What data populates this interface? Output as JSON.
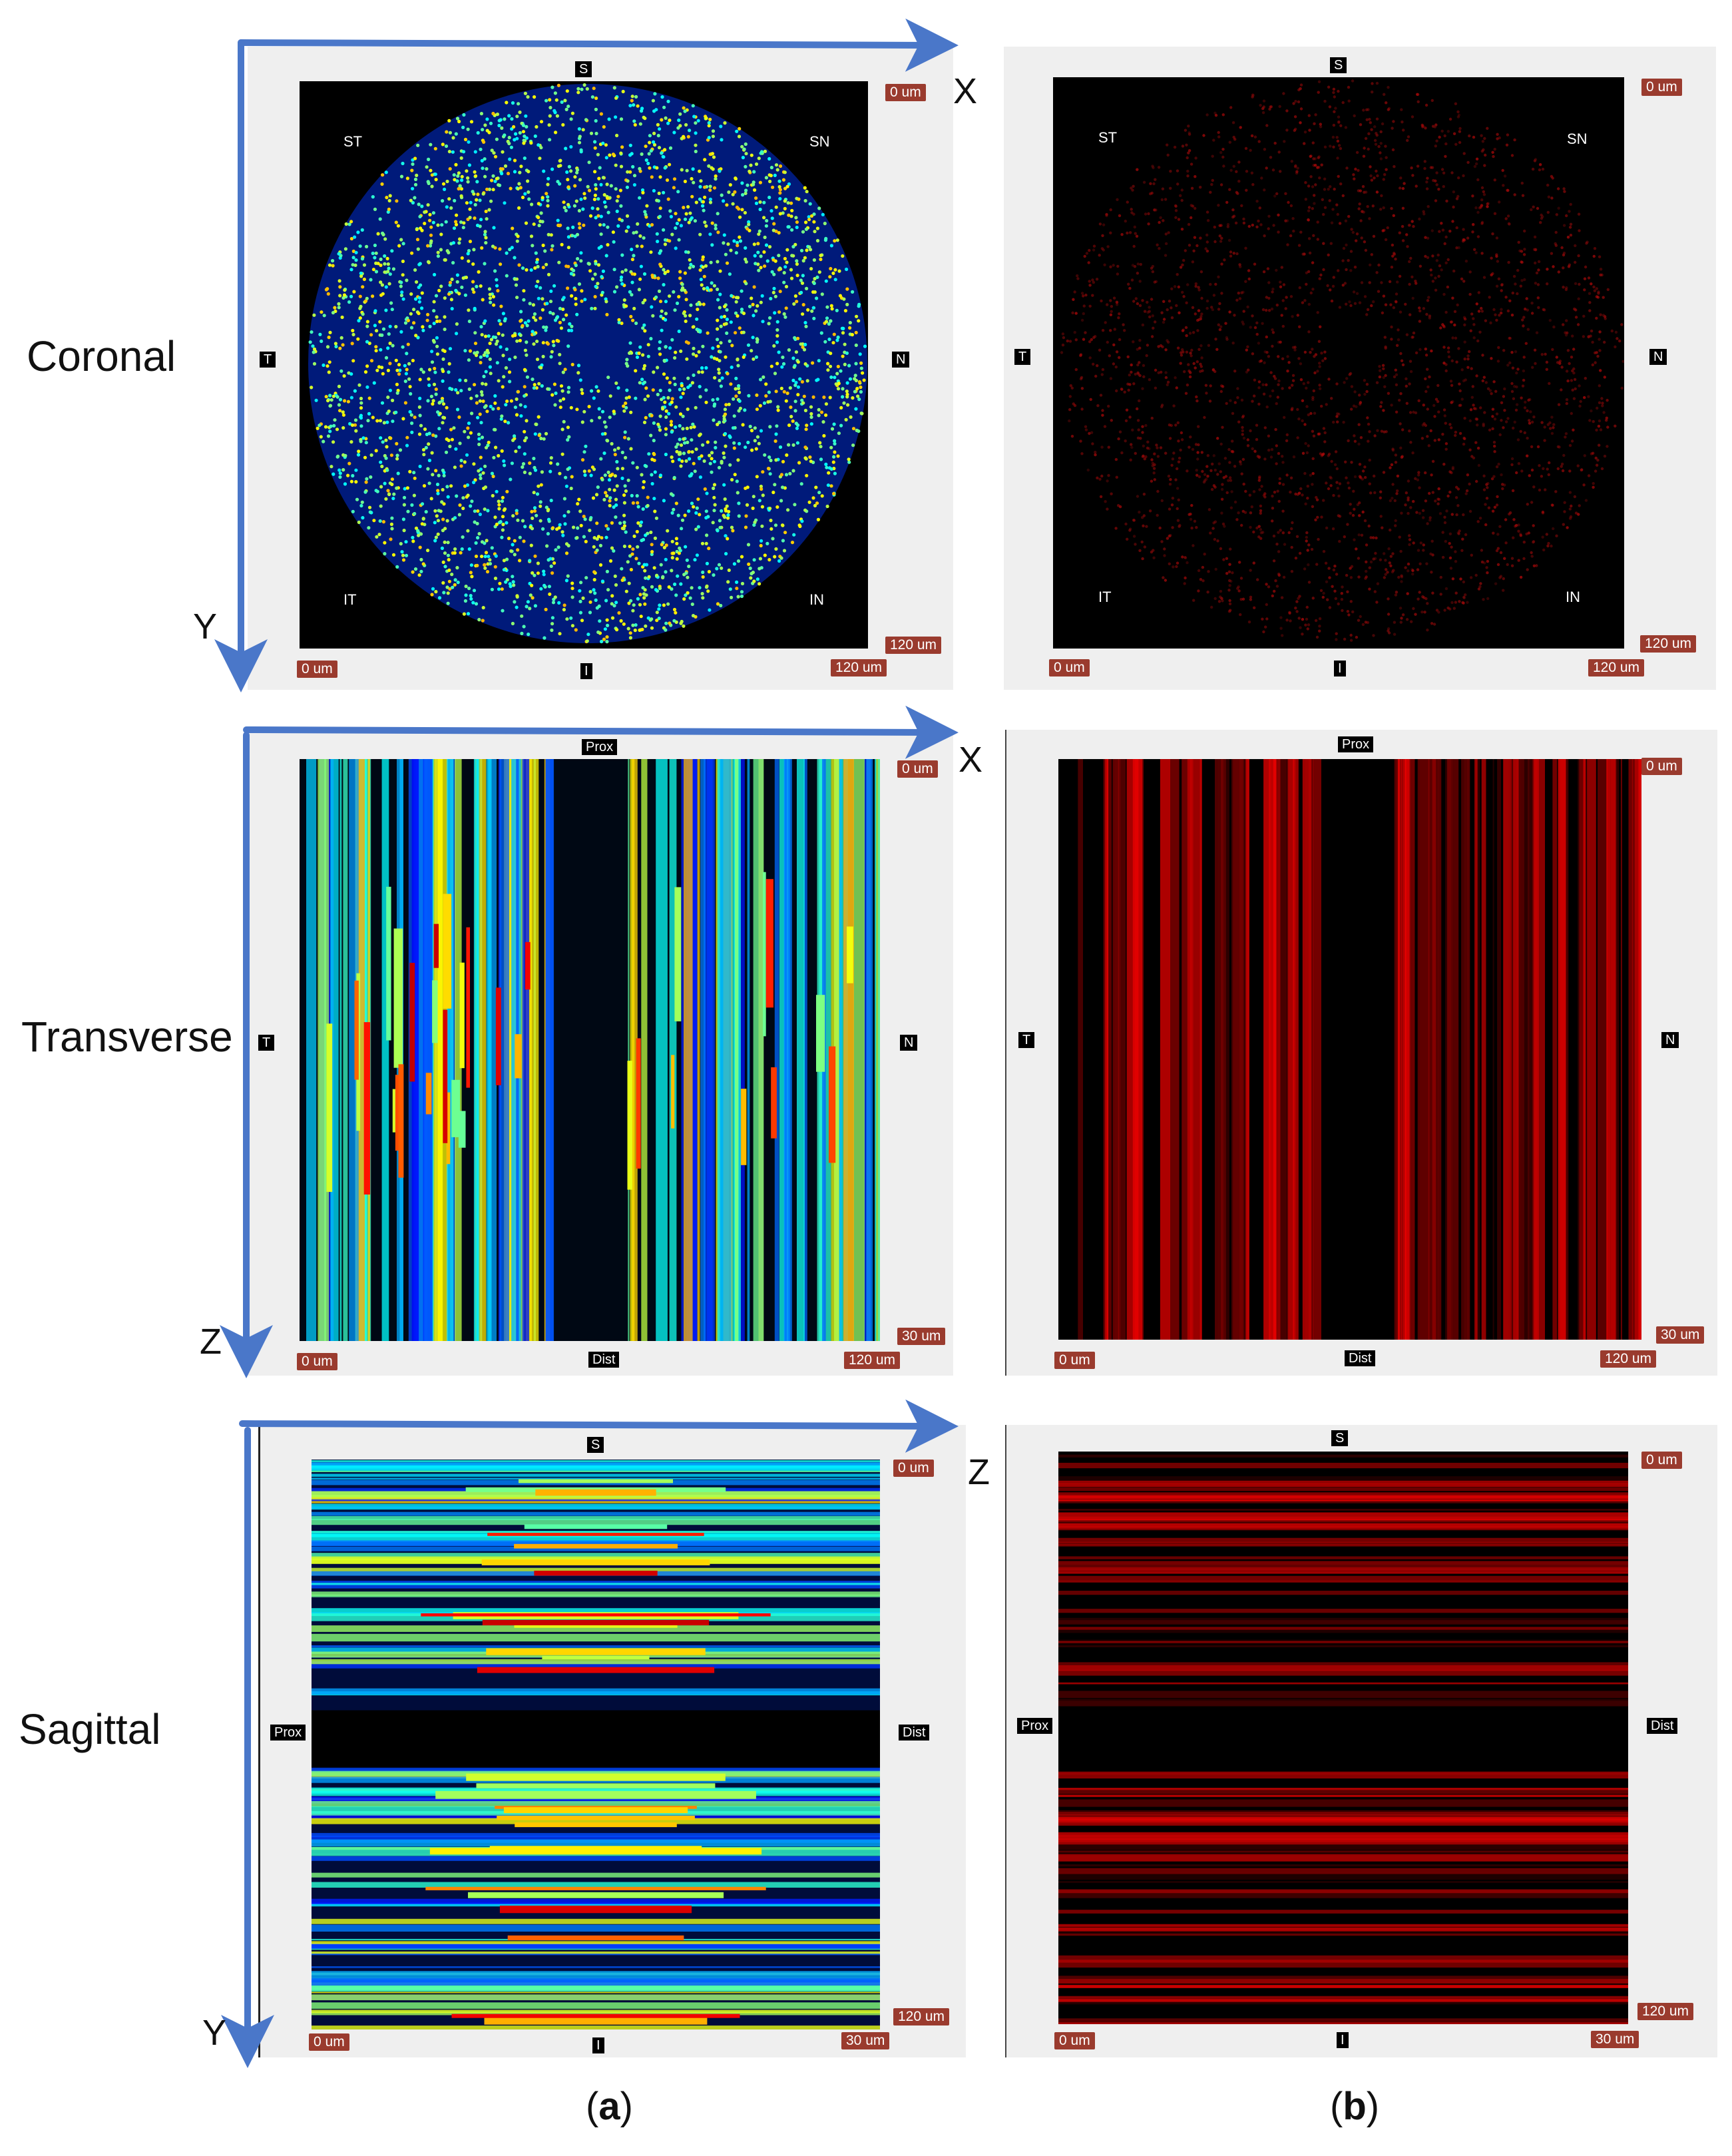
{
  "row_labels": {
    "coronal": "Coronal",
    "transverse": "Transverse",
    "sagittal": "Sagittal"
  },
  "axis_letters": {
    "x": "X",
    "y": "Y",
    "z": "Z"
  },
  "subfigures": {
    "a_open": "(",
    "a_letter": "a",
    "a_close": ")",
    "b_open": "(",
    "b_letter": "b",
    "b_close": ")"
  },
  "coronal": {
    "top_tag": "S",
    "bottom_tag": "I",
    "left_tag": "T",
    "right_tag": "N",
    "corners": {
      "tl": "ST",
      "tr": "SN",
      "bl": "IT",
      "br": "IN"
    },
    "scale": {
      "top_right": "0 um",
      "bottom_right": "120 um",
      "bottom_left": "0 um",
      "bottom_mid_right": "120 um"
    }
  },
  "transverse": {
    "top_tag": "Prox",
    "bottom_tag": "Dist",
    "left_tag": "T",
    "right_tag": "N",
    "scale": {
      "top_right": "0 um",
      "bottom_right": "30 um",
      "bottom_left": "0 um",
      "bottom_mid_right": "120 um"
    }
  },
  "sagittal": {
    "top_tag": "S",
    "bottom_tag": "I",
    "left_tag": "Prox",
    "right_tag": "Dist",
    "scale": {
      "top_right": "0 um",
      "bottom_right": "120 um",
      "bottom_left": "0 um",
      "bottom_mid_right": "30 um"
    }
  },
  "colors": {
    "arrow": "#4a77c9",
    "scale_bg": "#9a3b2e",
    "panel_bg": "#efefef"
  }
}
